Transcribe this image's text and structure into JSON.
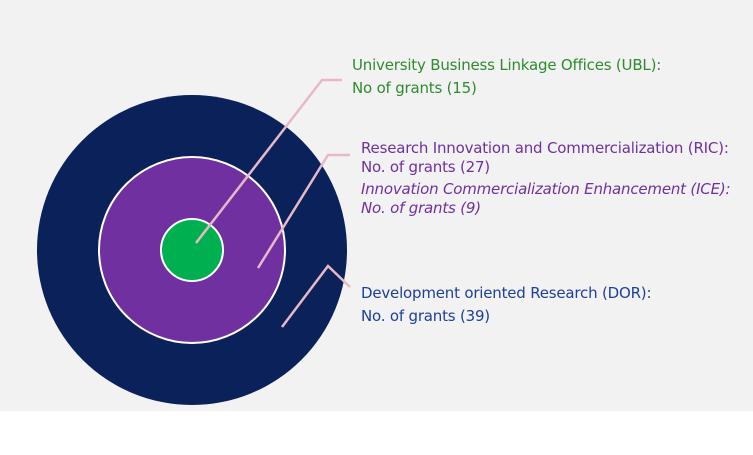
{
  "colors": {
    "background": "#f2f2f2",
    "outer_ring": "#0a2159",
    "middle_ring": "#7030a0",
    "inner_core": "#00b050",
    "ring_border": "#ffffff",
    "leader_line": "#e8b8c8",
    "ubl_text": "#2e8b2e",
    "ric_text": "#7030a0",
    "dor_text": "#1f3f99"
  },
  "rings": {
    "ubl": {
      "title": "University Business Linkage Offices (UBL):",
      "grants": "No of grants (15)",
      "count": 15
    },
    "ric": {
      "title": "Research Innovation and Commercialization (RIC):",
      "grants": "No. of grants (27)",
      "count": 27,
      "sub_title": "Innovation Commercialization Enhancement (ICE):",
      "sub_grants": "No. of grants (9)",
      "sub_count": 9
    },
    "dor": {
      "title": "Development oriented Research (DOR):",
      "grants": "No. of grants (39)",
      "count": 39
    }
  }
}
